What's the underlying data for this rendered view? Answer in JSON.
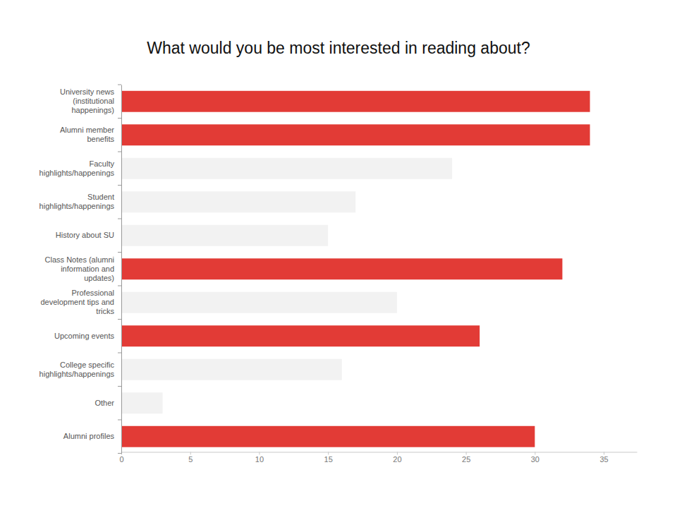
{
  "chart_data": {
    "type": "bar",
    "orientation": "horizontal",
    "title": "What would you be most interested in reading about?",
    "categories": [
      "University news (institutional happenings)",
      "Alumni member benefits",
      "Faculty highlights/happenings",
      "Student highlights/happenings",
      "History about SU",
      "Class Notes (alumni information and updates)",
      "Professional development tips and tricks",
      "Upcoming events",
      "College specific highlights/happenings",
      "Other",
      "Alumni profiles"
    ],
    "values": [
      34,
      34,
      24,
      17,
      15,
      32,
      20,
      26,
      16,
      3,
      30
    ],
    "colors": [
      "#e23b36",
      "#e23b36",
      "#f2f2f2",
      "#f2f2f2",
      "#f2f2f2",
      "#e23b36",
      "#f2f2f2",
      "#e23b36",
      "#f2f2f2",
      "#f2f2f2",
      "#e23b36"
    ],
    "xlim": [
      0,
      37.4
    ],
    "xticks": [
      0,
      5,
      10,
      15,
      20,
      25,
      30,
      35
    ],
    "grid": false
  }
}
